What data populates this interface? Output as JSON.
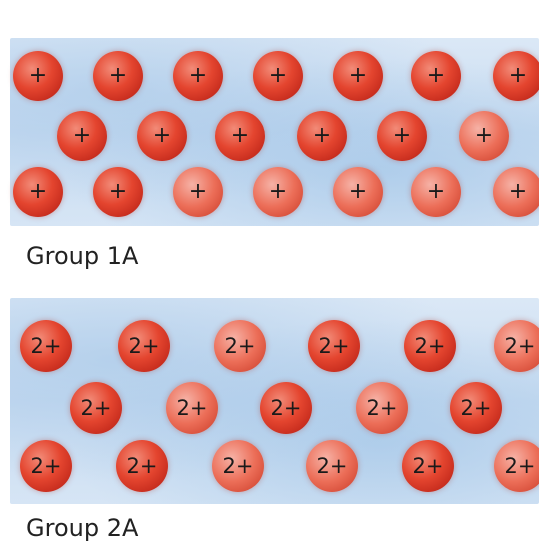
{
  "groups": [
    {
      "label": "Group 1A",
      "ion_charge": "+",
      "rows": [
        7,
        6,
        7
      ]
    },
    {
      "label": "Group 2A",
      "ion_charge": "2+",
      "rows": [
        6,
        5,
        6
      ]
    }
  ],
  "colors": {
    "ion": "#e4452f",
    "electron_sea": "#c8dcf1",
    "label_text": "#222222"
  }
}
